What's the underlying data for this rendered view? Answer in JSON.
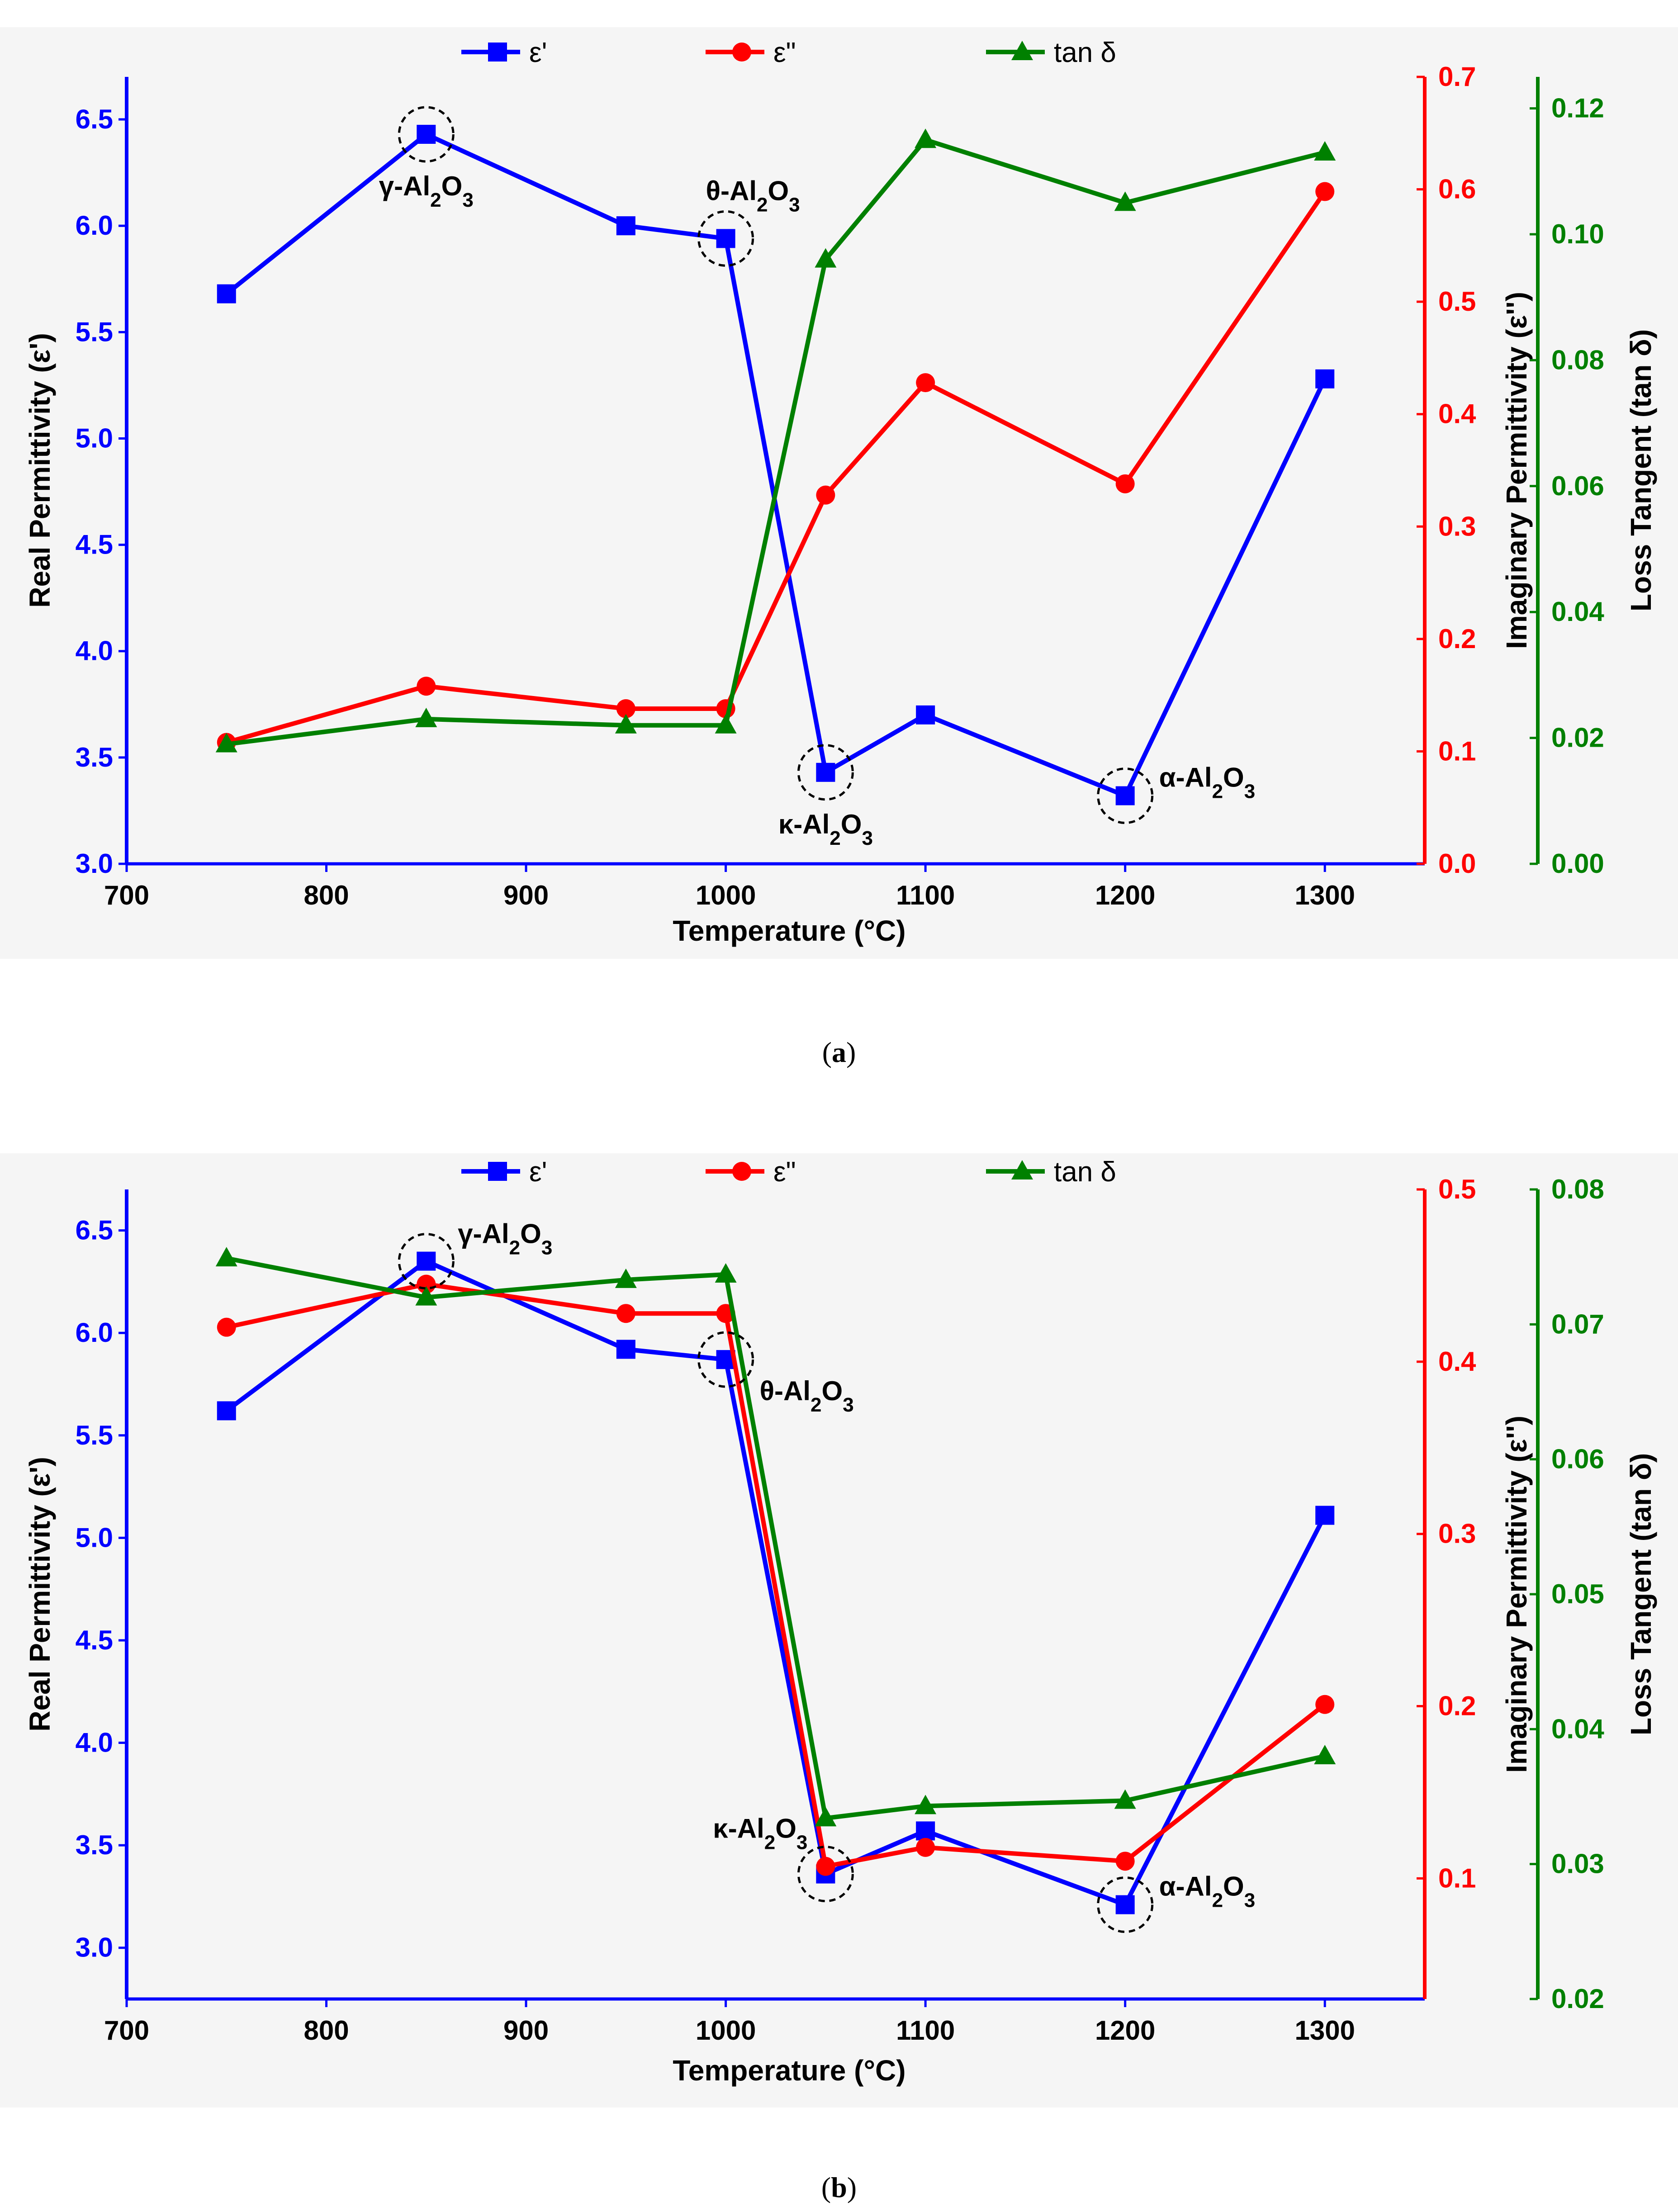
{
  "captions": {
    "a": {
      "open": "(",
      "letter": "a",
      "close": ")"
    },
    "b": {
      "open": "(",
      "letter": "b",
      "close": ")"
    }
  },
  "colors": {
    "eps_real": "#0000ff",
    "eps_imag": "#ff0000",
    "tan_delta": "#008000",
    "background": "#f5f5f5"
  },
  "chart_data": [
    {
      "id": "a",
      "type": "line",
      "xlabel": "Temperature (°C)",
      "x": [
        750,
        850,
        950,
        1000,
        1050,
        1100,
        1200,
        1300
      ],
      "x_ticks": [
        700,
        800,
        900,
        1000,
        1100,
        1200,
        1300
      ],
      "xlim": [
        700,
        1350
      ],
      "legend": [
        "ε'",
        "ε\"",
        "tan δ"
      ],
      "axes": {
        "left": {
          "label": "Real Permittivity (ε')",
          "lim": [
            3.0,
            6.7
          ],
          "ticks": [
            3.0,
            3.5,
            4.0,
            4.5,
            5.0,
            5.5,
            6.0,
            6.5
          ],
          "decimals": 1
        },
        "right1": {
          "label": "Imaginary Permittivity (ε'')",
          "lim": [
            0.0,
            0.7
          ],
          "ticks": [
            0.0,
            0.1,
            0.2,
            0.3,
            0.4,
            0.5,
            0.6,
            0.7
          ],
          "decimals": 1
        },
        "right2": {
          "label": "Loss Tangent (tan δ)",
          "lim": [
            0.0,
            0.125
          ],
          "ticks": [
            0.0,
            0.02,
            0.04,
            0.06,
            0.08,
            0.1,
            0.12
          ],
          "decimals": 2
        }
      },
      "series": [
        {
          "name": "ε'",
          "axis": "left",
          "marker": "square",
          "values": [
            5.68,
            6.43,
            6.0,
            5.94,
            3.43,
            3.7,
            3.32,
            5.28
          ]
        },
        {
          "name": "ε\"",
          "axis": "right1",
          "marker": "circle",
          "values": [
            0.108,
            0.158,
            0.138,
            0.138,
            0.328,
            0.428,
            0.338,
            0.598
          ]
        },
        {
          "name": "tan δ",
          "axis": "right2",
          "marker": "triangle",
          "values": [
            0.019,
            0.023,
            0.022,
            0.022,
            0.096,
            0.115,
            0.105,
            0.113
          ]
        }
      ],
      "annotations": [
        {
          "text_pre": "γ-Al",
          "sub1": "2",
          "mid": "O",
          "sub2": "3",
          "x": 850,
          "y": 6.43,
          "pos": "below"
        },
        {
          "text_pre": "θ-Al",
          "sub1": "2",
          "mid": "O",
          "sub2": "3",
          "x": 1000,
          "y": 5.94,
          "pos": "above"
        },
        {
          "text_pre": "κ-Al",
          "sub1": "2",
          "mid": "O",
          "sub2": "3",
          "x": 1050,
          "y": 3.43,
          "pos": "below"
        },
        {
          "text_pre": "α-Al",
          "sub1": "2",
          "mid": "O",
          "sub2": "3",
          "x": 1200,
          "y": 3.32,
          "pos": "right"
        }
      ]
    },
    {
      "id": "b",
      "type": "line",
      "xlabel": "Temperature (°C)",
      "x": [
        750,
        850,
        950,
        1000,
        1050,
        1100,
        1200,
        1300
      ],
      "x_ticks": [
        700,
        800,
        900,
        1000,
        1100,
        1200,
        1300
      ],
      "xlim": [
        700,
        1350
      ],
      "legend": [
        "ε'",
        "ε\"",
        "tan δ"
      ],
      "axes": {
        "left": {
          "label": "Real Permittivity (ε')",
          "lim": [
            2.75,
            6.7
          ],
          "ticks": [
            3.0,
            3.5,
            4.0,
            4.5,
            5.0,
            5.5,
            6.0,
            6.5
          ],
          "decimals": 1
        },
        "right1": {
          "label": "Imaginary Permittivity (ε'')",
          "lim": [
            0.03,
            0.5
          ],
          "ticks": [
            0.1,
            0.2,
            0.3,
            0.4,
            0.5
          ],
          "decimals": 1
        },
        "right2": {
          "label": "Loss Tangent (tan δ)",
          "lim": [
            0.02,
            0.08
          ],
          "ticks": [
            0.02,
            0.03,
            0.04,
            0.05,
            0.06,
            0.07,
            0.08
          ],
          "decimals": 2
        }
      },
      "series": [
        {
          "name": "ε'",
          "axis": "left",
          "marker": "square",
          "values": [
            5.62,
            6.35,
            5.92,
            5.87,
            3.36,
            3.57,
            3.21,
            5.11
          ]
        },
        {
          "name": "ε\"",
          "axis": "right1",
          "marker": "circle",
          "values": [
            0.42,
            0.445,
            0.428,
            0.428,
            0.107,
            0.118,
            0.11,
            0.201
          ]
        },
        {
          "name": "tan δ",
          "axis": "right2",
          "marker": "triangle",
          "values": [
            0.0749,
            0.072,
            0.0733,
            0.0737,
            0.0334,
            0.0343,
            0.0347,
            0.038
          ]
        }
      ],
      "annotations": [
        {
          "text_pre": "γ-Al",
          "sub1": "2",
          "mid": "O",
          "sub2": "3",
          "x": 850,
          "y": 6.35,
          "pos": "right-up"
        },
        {
          "text_pre": "θ-Al",
          "sub1": "2",
          "mid": "O",
          "sub2": "3",
          "x": 1000,
          "y": 5.87,
          "pos": "right-down"
        },
        {
          "text_pre": "κ-Al",
          "sub1": "2",
          "mid": "O",
          "sub2": "3",
          "x": 1050,
          "y": 3.36,
          "pos": "left-up"
        },
        {
          "text_pre": "α-Al",
          "sub1": "2",
          "mid": "O",
          "sub2": "3",
          "x": 1200,
          "y": 3.21,
          "pos": "right"
        }
      ]
    }
  ]
}
